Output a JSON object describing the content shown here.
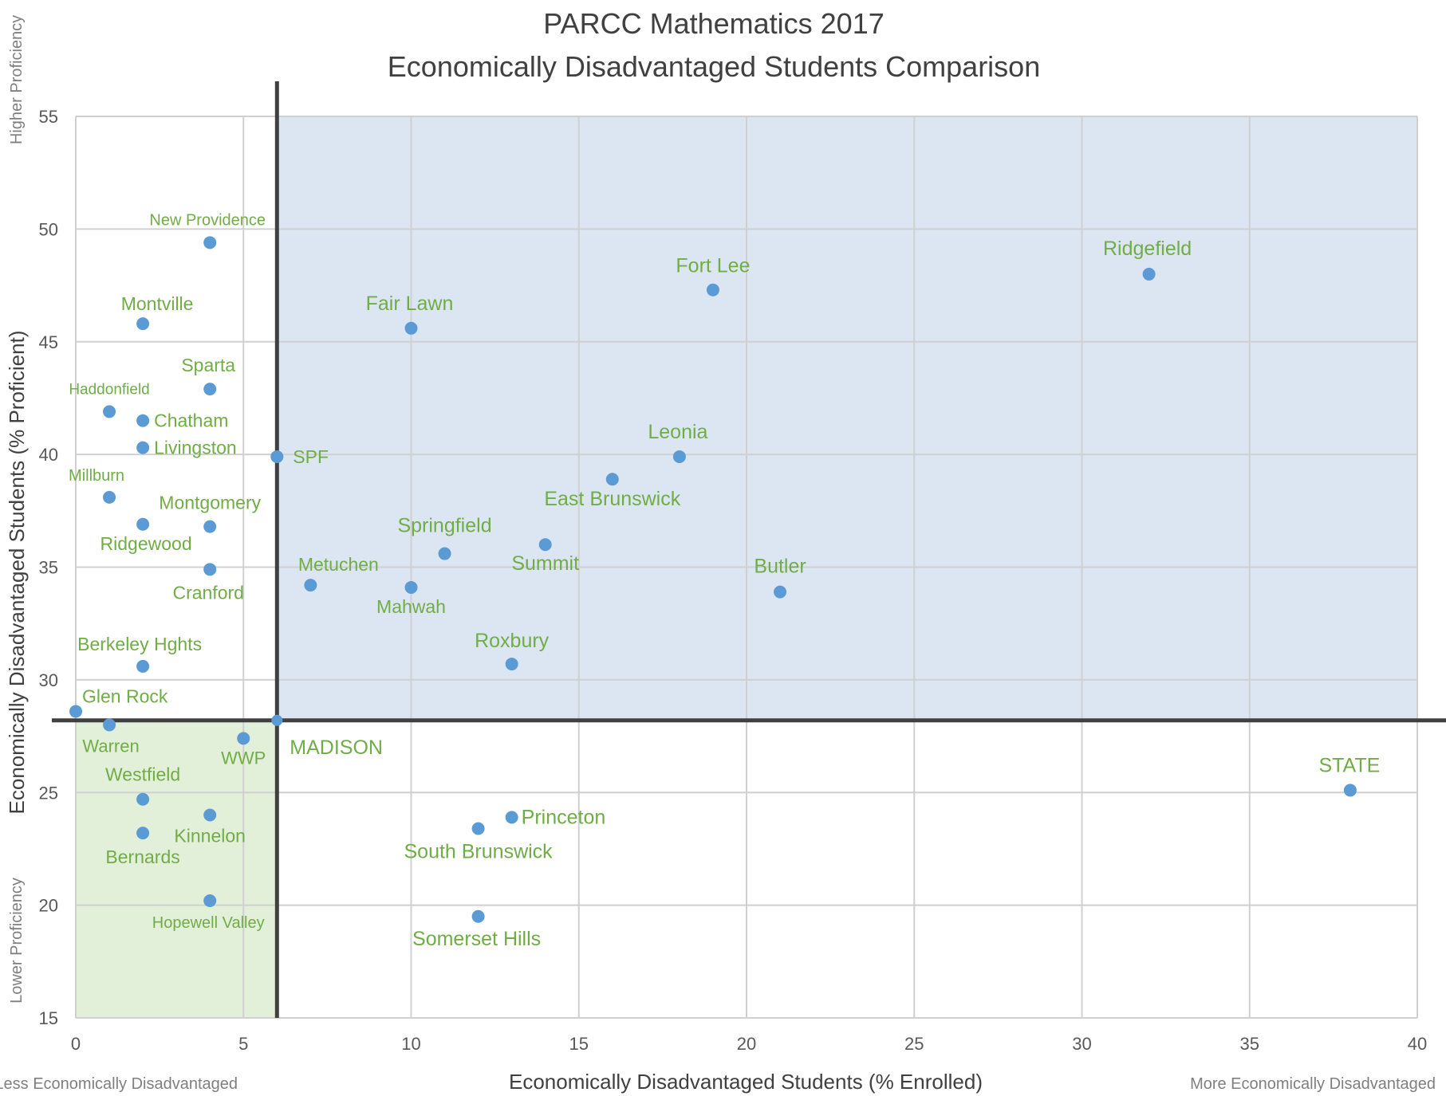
{
  "chart_data": {
    "type": "scatter",
    "title": "PARCC Mathematics 2017",
    "subtitle": "Economically Disadvantaged Students Comparison",
    "xlabel": "Economically Disadvantaged Students (% Enrolled)",
    "ylabel": "Economically Disadvantaged Students (% Proficient)",
    "xlim": [
      0,
      40
    ],
    "ylim": [
      15,
      55
    ],
    "x_ticks": [
      0,
      5,
      10,
      15,
      20,
      25,
      30,
      35,
      40
    ],
    "y_ticks": [
      15,
      20,
      25,
      30,
      35,
      40,
      45,
      50,
      55
    ],
    "grid": true,
    "y_axis_top_note": "Higher Proficiency",
    "y_axis_bottom_note": "Lower Proficiency",
    "x_axis_left_note": "Less Economically Disadvantaged",
    "x_axis_right_note": "More Economically Disadvantaged",
    "reference": {
      "label": "MADISON",
      "x": 6,
      "y": 28.2
    },
    "colors": {
      "point": "#5b9bd5",
      "label": "#70ad47",
      "upper_right_quadrant": "#dce6f2",
      "lower_left_quadrant": "#e2efd9",
      "crosshair": "#404040",
      "grid": "#d0d0d0"
    },
    "points": [
      {
        "label": "New Providence",
        "x": 4,
        "y": 49.4
      },
      {
        "label": "Montville",
        "x": 2,
        "y": 45.8
      },
      {
        "label": "Sparta",
        "x": 4,
        "y": 42.9
      },
      {
        "label": "Haddonfield",
        "x": 1,
        "y": 41.9
      },
      {
        "label": "Chatham",
        "x": 2,
        "y": 41.5
      },
      {
        "label": "Livingston",
        "x": 2,
        "y": 40.3
      },
      {
        "label": "SPF",
        "x": 6,
        "y": 39.9
      },
      {
        "label": "Millburn",
        "x": 1,
        "y": 38.1
      },
      {
        "label": "Montgomery",
        "x": 4,
        "y": 36.8
      },
      {
        "label": "Ridgewood",
        "x": 2,
        "y": 36.9
      },
      {
        "label": "Cranford",
        "x": 4,
        "y": 34.9
      },
      {
        "label": "Berkeley Hghts",
        "x": 2,
        "y": 30.6
      },
      {
        "label": "Glen Rock",
        "x": 0,
        "y": 28.6
      },
      {
        "label": "Warren",
        "x": 1,
        "y": 28.0
      },
      {
        "label": "WWP",
        "x": 5,
        "y": 27.4
      },
      {
        "label": "Westfield",
        "x": 2,
        "y": 24.7
      },
      {
        "label": "Kinnelon",
        "x": 4,
        "y": 24.0
      },
      {
        "label": "Bernards",
        "x": 2,
        "y": 23.2
      },
      {
        "label": "Hopewell Valley",
        "x": 4,
        "y": 20.2
      },
      {
        "label": "Fair Lawn",
        "x": 10,
        "y": 45.6
      },
      {
        "label": "Fort Lee",
        "x": 19,
        "y": 47.3
      },
      {
        "label": "Ridgefield",
        "x": 32,
        "y": 48.0
      },
      {
        "label": "Leonia",
        "x": 18,
        "y": 39.9
      },
      {
        "label": "East Brunswick",
        "x": 16,
        "y": 38.9
      },
      {
        "label": "Springfield",
        "x": 11,
        "y": 35.6
      },
      {
        "label": "Summit",
        "x": 14,
        "y": 36.0
      },
      {
        "label": "Metuchen",
        "x": 7,
        "y": 34.2
      },
      {
        "label": "Mahwah",
        "x": 10,
        "y": 34.1
      },
      {
        "label": "Butler",
        "x": 21,
        "y": 33.9
      },
      {
        "label": "Roxbury",
        "x": 13,
        "y": 30.7
      },
      {
        "label": "STATE",
        "x": 38,
        "y": 25.1
      },
      {
        "label": "Princeton",
        "x": 13,
        "y": 23.9
      },
      {
        "label": "South Brunswick",
        "x": 12,
        "y": 23.4
      },
      {
        "label": "Somerset Hills",
        "x": 12,
        "y": 19.5
      }
    ]
  }
}
